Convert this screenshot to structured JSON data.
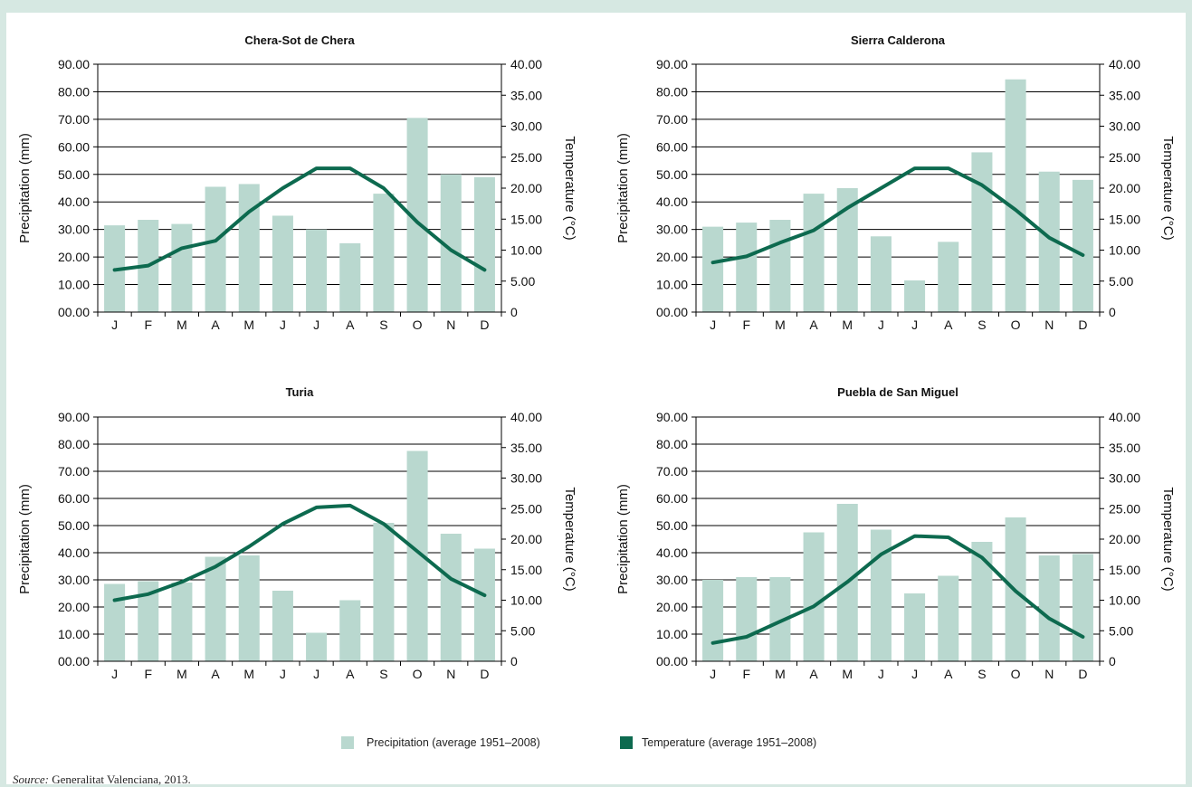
{
  "legend": {
    "precip_label": "Precipitation (average 1951–2008)",
    "temp_label": "Temperature (average 1951–2008)",
    "precip_color": "#b9d8cf",
    "temp_color": "#0d6a4f"
  },
  "source": {
    "prefix": "Source:",
    "text": " Generalitat Valenciana, 2013."
  },
  "chart_data": [
    {
      "type": "bar+line",
      "title": "Chera-Sot de Chera",
      "categories": [
        "J",
        "F",
        "M",
        "A",
        "M",
        "J",
        "J",
        "A",
        "S",
        "O",
        "N",
        "D"
      ],
      "ylabel": "Precipitation (mm)",
      "y2label": "Temperature (°C)",
      "ylim": [
        0,
        90
      ],
      "y2lim": [
        0,
        40
      ],
      "yticks": [
        "00.00",
        "10.00",
        "20.00",
        "30.00",
        "40.00",
        "50.00",
        "60.00",
        "70.00",
        "80.00",
        "90.00"
      ],
      "y2ticks": [
        "0",
        "5.00",
        "10.00",
        "15.00",
        "20.00",
        "25.00",
        "30.00",
        "35.00",
        "40.00"
      ],
      "series": [
        {
          "name": "Precipitation (average 1951–2008)",
          "kind": "bar",
          "values": [
            31.5,
            33.5,
            32,
            45.5,
            46.5,
            35,
            30,
            25,
            43,
            70.5,
            50,
            49
          ]
        },
        {
          "name": "Temperature (average 1951–2008)",
          "kind": "line",
          "values": [
            6.8,
            7.5,
            10.3,
            11.5,
            16.2,
            20,
            23.2,
            23.2,
            20,
            14.5,
            10,
            6.8
          ]
        }
      ]
    },
    {
      "type": "bar+line",
      "title": "Sierra Calderona",
      "categories": [
        "J",
        "F",
        "M",
        "A",
        "M",
        "J",
        "J",
        "A",
        "S",
        "O",
        "N",
        "D"
      ],
      "ylabel": "Precipitation (mm)",
      "y2label": "Temperature (°C)",
      "ylim": [
        0,
        90
      ],
      "y2lim": [
        0,
        40
      ],
      "yticks": [
        "00.00",
        "10.00",
        "20.00",
        "30.00",
        "40.00",
        "50.00",
        "60.00",
        "70.00",
        "80.00",
        "90.00"
      ],
      "y2ticks": [
        "0",
        "5.00",
        "10.00",
        "15.00",
        "20.00",
        "25.00",
        "30.00",
        "35.00",
        "40.00"
      ],
      "series": [
        {
          "name": "Precipitation (average 1951–2008)",
          "kind": "bar",
          "values": [
            31,
            32.5,
            33.5,
            43,
            45,
            27.5,
            11.5,
            25.5,
            58,
            84.5,
            51,
            48
          ]
        },
        {
          "name": "Temperature (average 1951–2008)",
          "kind": "line",
          "values": [
            8,
            9,
            11.2,
            13.2,
            16.8,
            20,
            23.2,
            23.2,
            20.5,
            16.5,
            12,
            9.2
          ]
        }
      ]
    },
    {
      "type": "bar+line",
      "title": "Turia",
      "categories": [
        "J",
        "F",
        "M",
        "A",
        "M",
        "J",
        "J",
        "A",
        "S",
        "O",
        "N",
        "D"
      ],
      "ylabel": "Precipitation (mm)",
      "y2label": "Temperature (°C)",
      "ylim": [
        0,
        90
      ],
      "y2lim": [
        0,
        40
      ],
      "yticks": [
        "00.00",
        "10.00",
        "20.00",
        "30.00",
        "40.00",
        "50.00",
        "60.00",
        "70.00",
        "80.00",
        "90.00"
      ],
      "y2ticks": [
        "0",
        "5.00",
        "10.00",
        "15.00",
        "20.00",
        "25.00",
        "30.00",
        "35.00",
        "40.00"
      ],
      "series": [
        {
          "name": "Precipitation (average 1951–2008)",
          "kind": "bar",
          "values": [
            28.5,
            29.5,
            29,
            38.5,
            39,
            26,
            10.5,
            22.5,
            51,
            77.5,
            47,
            41.5
          ]
        },
        {
          "name": "Temperature (average 1951–2008)",
          "kind": "line",
          "values": [
            10,
            11,
            13,
            15.5,
            18.8,
            22.5,
            25.2,
            25.5,
            22.5,
            18,
            13.5,
            10.8
          ]
        }
      ]
    },
    {
      "type": "bar+line",
      "title": "Puebla de San Miguel",
      "categories": [
        "J",
        "F",
        "M",
        "A",
        "M",
        "J",
        "J",
        "A",
        "S",
        "O",
        "N",
        "D"
      ],
      "ylabel": "Precipitation (mm)",
      "y2label": "Temperature (°C)",
      "ylim": [
        0,
        90
      ],
      "y2lim": [
        0,
        40
      ],
      "yticks": [
        "00.00",
        "10.00",
        "20.00",
        "30.00",
        "40.00",
        "50.00",
        "60.00",
        "70.00",
        "80.00",
        "90.00"
      ],
      "y2ticks": [
        "0",
        "5.00",
        "10.00",
        "15.00",
        "20.00",
        "25.00",
        "30.00",
        "35.00",
        "40.00"
      ],
      "series": [
        {
          "name": "Precipitation (average 1951–2008)",
          "kind": "bar",
          "values": [
            30,
            31,
            31,
            47.5,
            58,
            48.5,
            25,
            31.5,
            44,
            53,
            39,
            39.5
          ]
        },
        {
          "name": "Temperature (average 1951–2008)",
          "kind": "line",
          "values": [
            3,
            4,
            6.5,
            9,
            13,
            17.5,
            20.5,
            20.3,
            17,
            11.5,
            7,
            4
          ]
        }
      ]
    }
  ]
}
